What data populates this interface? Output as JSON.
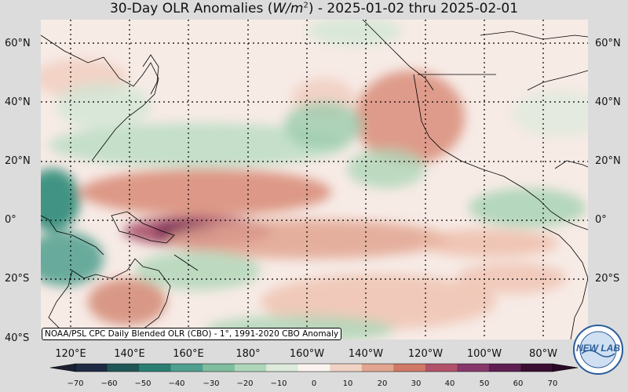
{
  "title": {
    "prefix": "30-Day OLR Anomalies (",
    "unit": "W/m",
    "unit_exp": "2",
    "suffix": ") - 2025-01-02 thru 2025-02-01"
  },
  "lat_labels": [
    "60°N",
    "40°N",
    "20°N",
    "0°",
    "20°S",
    "40°S"
  ],
  "lon_labels": [
    "120°E",
    "140°E",
    "160°E",
    "180°",
    "160°W",
    "140°W",
    "120°W",
    "100°W",
    "80°W"
  ],
  "caption": "NOAA/PSL CPC Daily Blended OLR (CBO) - 1°, 1991-2020 CBO Anomaly",
  "colorbar": {
    "ticks": [
      "−70",
      "−60",
      "−50",
      "−40",
      "−30",
      "−20",
      "−10",
      "0",
      "10",
      "20",
      "30",
      "40",
      "50",
      "60",
      "70"
    ],
    "colors": [
      "#1e2a44",
      "#1f5656",
      "#2a7f72",
      "#4fa08e",
      "#7fbd9f",
      "#aed6b8",
      "#dcebdc",
      "#fbf4f0",
      "#f0d3c4",
      "#e2a58f",
      "#cf7a66",
      "#b2526a",
      "#873769",
      "#5e1e52",
      "#3a0d33"
    ]
  },
  "logo": {
    "text": "NEW LAB",
    "ring_text": "NOAA PHYSICAL SCIENCES LABORATORY"
  }
}
